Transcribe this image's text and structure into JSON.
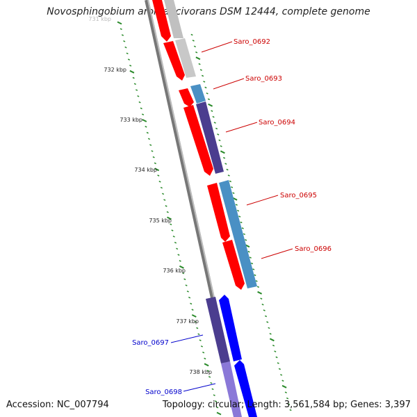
{
  "title": "Novosphingobium aromaticivorans DSM 12444, complete genome",
  "accession": "Accession: NC_007794",
  "topology": "Topology: circular; Length: 3,561,584 bp; Genes: 3,397",
  "scale_labels": [
    {
      "text": "731 kbp",
      "kbp": 731
    },
    {
      "text": "732 kbp",
      "kbp": 732
    },
    {
      "text": "733 kbp",
      "kbp": 733
    },
    {
      "text": "734 kbp",
      "kbp": 734
    },
    {
      "text": "735 kbp",
      "kbp": 735
    },
    {
      "text": "736 kbp",
      "kbp": 736
    },
    {
      "text": "737 kbp",
      "kbp": 737
    },
    {
      "text": "738 kbp",
      "kbp": 738
    }
  ],
  "genes": [
    {
      "label": "Saro_0692",
      "color": "#cc0000",
      "start_kbp": 731.75,
      "strand": "+"
    },
    {
      "label": "Saro_0693",
      "color": "#cc0000",
      "start_kbp": 732.4,
      "strand": "+"
    },
    {
      "label": "Saro_0694",
      "color": "#cc0000",
      "start_kbp": 733.0,
      "strand": "+"
    },
    {
      "label": "Saro_0695",
      "color": "#cc0000",
      "start_kbp": 734.5,
      "strand": "+"
    },
    {
      "label": "Saro_0696",
      "color": "#cc0000",
      "start_kbp": 735.6,
      "strand": "+"
    },
    {
      "label": "Saro_0697",
      "color": "#0000cc",
      "start_kbp": 737.3,
      "strand": "-"
    },
    {
      "label": "Saro_0698",
      "color": "#0000cc",
      "start_kbp": 738.3,
      "strand": "-"
    }
  ],
  "colors": {
    "backbone": "#808080",
    "ticks": "#2a8a2a",
    "cds_forward": "#ff0000",
    "cds_reverse": "#0000ff",
    "gray_feature": "#c0c0c0",
    "steelblue_feature": "#4a90c4",
    "slate_feature": "#4b3d8f",
    "lavender_feature": "#8a78d8"
  }
}
